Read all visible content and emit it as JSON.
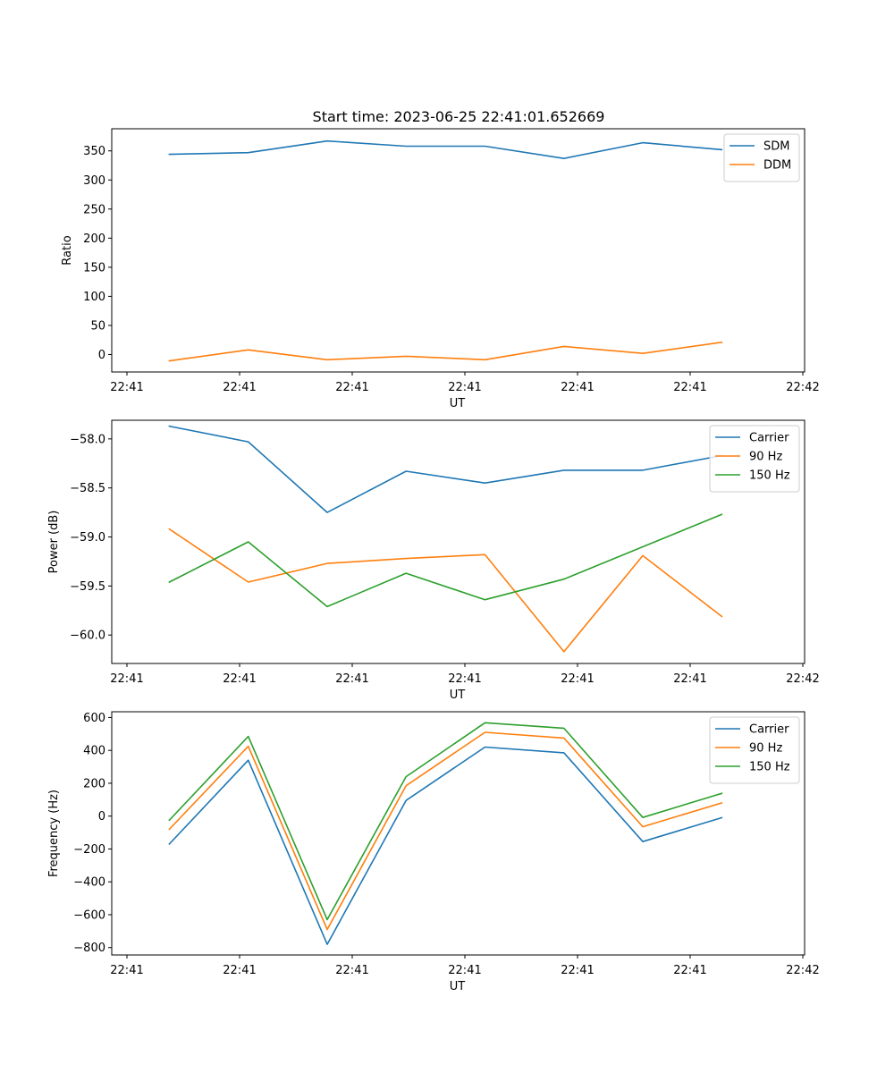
{
  "figure": {
    "title": "Start time: 2023-06-25 22:41:01.652669"
  },
  "chart_data": [
    {
      "type": "line",
      "title": "Start time: 2023-06-25 22:41:01.652669",
      "xlabel": "UT",
      "ylabel": "Ratio",
      "x_tick_labels": [
        "22:41",
        "22:41",
        "22:41",
        "22:41",
        "22:41",
        "22:41",
        "22:42"
      ],
      "x": [
        1,
        2,
        3,
        4,
        5,
        6,
        7,
        8
      ],
      "xlim": [
        0.27,
        9.05
      ],
      "ylim": [
        -30,
        388
      ],
      "y_ticks": [
        0,
        50,
        100,
        150,
        200,
        250,
        300,
        350
      ],
      "legend_position": "top-right",
      "grid": false,
      "series": [
        {
          "name": "SDM",
          "color": "#1f77b4",
          "values": [
            344,
            347,
            367,
            358,
            358,
            337,
            364,
            352
          ]
        },
        {
          "name": "DDM",
          "color": "#ff7f0e",
          "values": [
            -11,
            8,
            -9,
            -3,
            -9,
            14,
            2,
            21
          ]
        }
      ]
    },
    {
      "type": "line",
      "xlabel": "UT",
      "ylabel": "Power (dB)",
      "x_tick_labels": [
        "22:41",
        "22:41",
        "22:41",
        "22:41",
        "22:41",
        "22:41",
        "22:42"
      ],
      "x": [
        1,
        2,
        3,
        4,
        5,
        6,
        7,
        8
      ],
      "xlim": [
        0.27,
        9.05
      ],
      "ylim": [
        -60.29,
        -57.81
      ],
      "y_ticks": [
        -60.0,
        -59.5,
        -59.0,
        -58.5,
        -58.0
      ],
      "legend_position": "top-right",
      "grid": false,
      "series": [
        {
          "name": "Carrier",
          "color": "#1f77b4",
          "values": [
            -57.87,
            -58.03,
            -58.75,
            -58.33,
            -58.45,
            -58.32,
            -58.32,
            -58.17
          ]
        },
        {
          "name": "90 Hz",
          "color": "#ff7f0e",
          "values": [
            -58.92,
            -59.46,
            -59.27,
            -59.22,
            -59.18,
            -60.17,
            -59.19,
            -59.81
          ]
        },
        {
          "name": "150 Hz",
          "color": "#2ca02c",
          "values": [
            -59.46,
            -59.05,
            -59.71,
            -59.37,
            -59.64,
            -59.43,
            -59.1,
            -58.77
          ]
        }
      ]
    },
    {
      "type": "line",
      "xlabel": "UT",
      "ylabel": "Frequency (Hz)",
      "x_tick_labels": [
        "22:41",
        "22:41",
        "22:41",
        "22:41",
        "22:41",
        "22:41",
        "22:42"
      ],
      "x": [
        1,
        2,
        3,
        4,
        5,
        6,
        7,
        8
      ],
      "xlim": [
        0.27,
        9.05
      ],
      "ylim": [
        -845,
        635
      ],
      "y_ticks": [
        -800,
        -600,
        -400,
        -200,
        0,
        200,
        400,
        600
      ],
      "legend_position": "top-right",
      "grid": false,
      "series": [
        {
          "name": "Carrier",
          "color": "#1f77b4",
          "values": [
            -170,
            340,
            -780,
            95,
            420,
            385,
            -155,
            -10
          ]
        },
        {
          "name": "90 Hz",
          "color": "#ff7f0e",
          "values": [
            -80,
            425,
            -690,
            185,
            510,
            475,
            -65,
            80
          ]
        },
        {
          "name": "150 Hz",
          "color": "#2ca02c",
          "values": [
            -25,
            485,
            -630,
            240,
            568,
            535,
            -8,
            138
          ]
        }
      ]
    }
  ]
}
